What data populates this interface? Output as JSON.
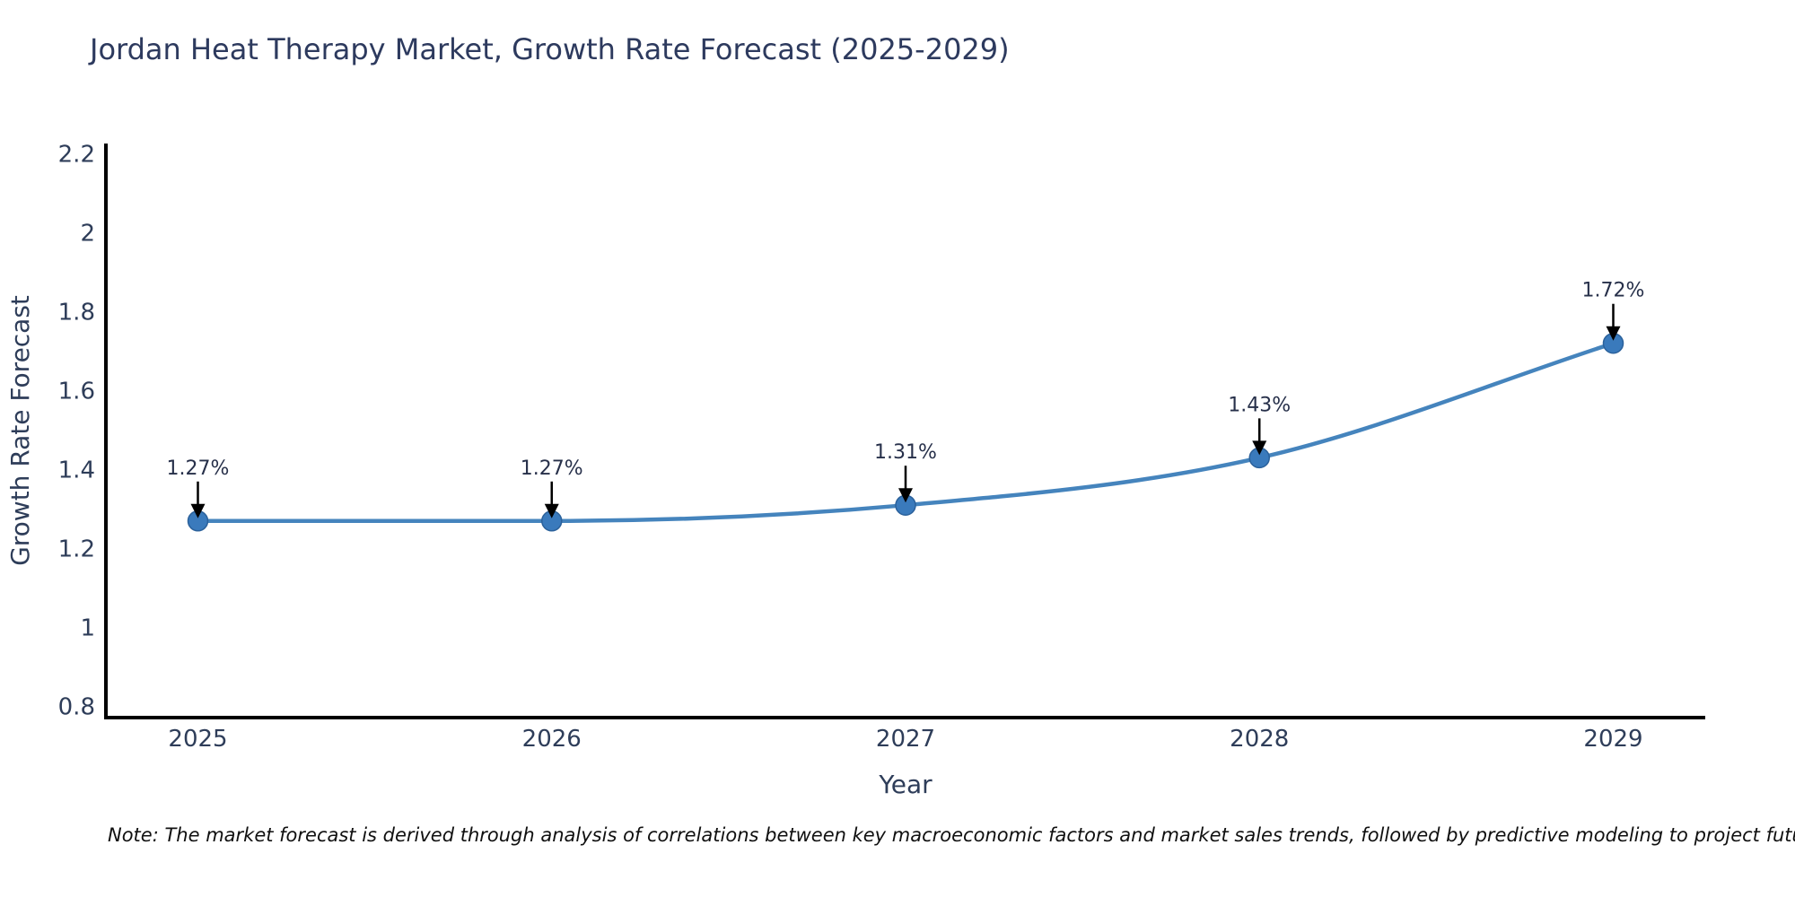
{
  "page": {
    "title": "Jordan Heat Therapy Market, Growth Rate Forecast (2025-2029)",
    "note": "Note: The market forecast is derived through analysis of correlations between key macroeconomic factors and market sales trends, followed by predictive modeling to project future sales"
  },
  "chart_data": {
    "type": "line",
    "title": "Jordan Heat Therapy Market, Growth Rate Forecast (2025-2029)",
    "xlabel": "Year",
    "ylabel": "Growth Rate Forecast",
    "x": [
      2025,
      2026,
      2027,
      2028,
      2029
    ],
    "values": [
      1.27,
      1.27,
      1.31,
      1.43,
      1.72
    ],
    "point_labels": [
      "1.27%",
      "1.27%",
      "1.31%",
      "1.43%",
      "1.72%"
    ],
    "yticks": [
      0.8,
      1,
      1.2,
      1.4,
      1.6,
      1.8,
      2,
      2.2
    ],
    "xticks": [
      2025,
      2026,
      2027,
      2028,
      2029
    ],
    "ylim": [
      0.772,
      2.226
    ],
    "xlim": [
      2024.74,
      2029.26
    ],
    "grid": false,
    "legend": false,
    "line_shape": "smooth",
    "colors": {
      "line": "#4584bd",
      "marker_fill": "#3a7abc",
      "marker_stroke": "#2b619b",
      "axis": "#000000",
      "annotation_arrow": "#000000",
      "text": "#2e3d59"
    }
  }
}
